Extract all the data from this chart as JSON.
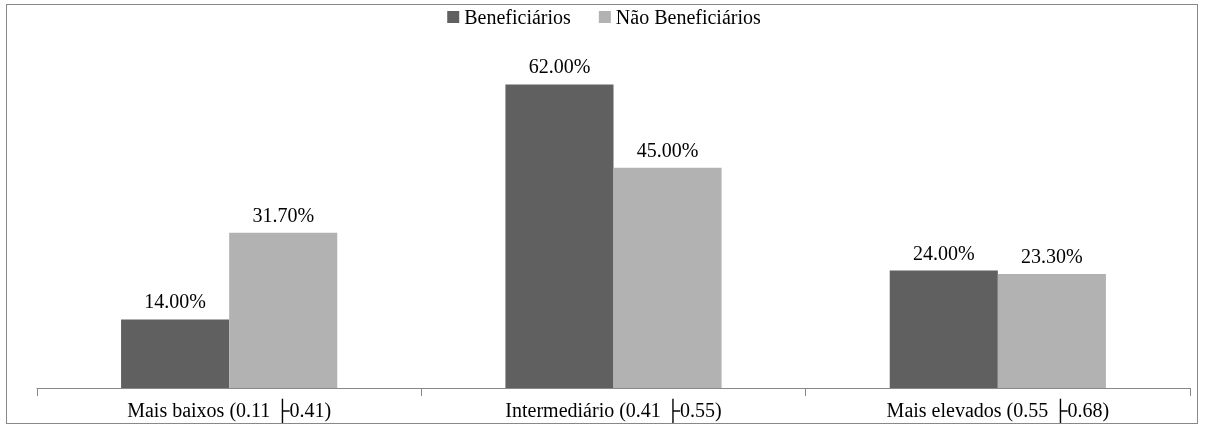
{
  "chart_data": {
    "type": "bar",
    "categories": [
      "Mais baixos (0.11 ├0.41)",
      "Intermediário (0.41 ├0.55)",
      "Mais elevados (0.55 ├0.68)"
    ],
    "series": [
      {
        "name": "Beneficiários",
        "color": "#606060",
        "values": [
          14.0,
          62.0,
          24.0
        ],
        "value_labels": [
          "14.00%",
          "62.00%",
          "24.00%"
        ]
      },
      {
        "name": "Não Beneficiários",
        "color": "#b2b2b2",
        "values": [
          31.7,
          45.0,
          23.3
        ],
        "value_labels": [
          "31.70%",
          "45.00%",
          "23.30%"
        ]
      }
    ],
    "legend": "top",
    "grid": false
  }
}
